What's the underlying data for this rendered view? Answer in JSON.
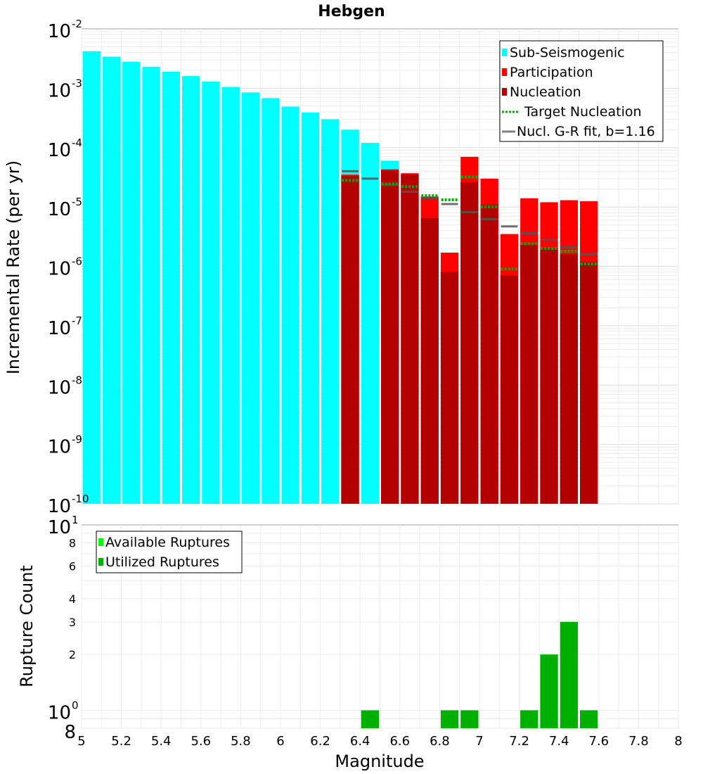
{
  "chart_data": [
    {
      "type": "bar",
      "title": "Hebgen",
      "xlabel": "",
      "ylabel": "Incremental Rate (per yr)",
      "yscale": "log",
      "ylim": [
        1e-10,
        0.01
      ],
      "xlim": [
        5.0,
        8.0
      ],
      "y_tick_labels": [
        {
          "base": "10",
          "exp": "-2",
          "value": 0.01
        },
        {
          "base": "10",
          "exp": "-3",
          "value": 0.001
        },
        {
          "base": "10",
          "exp": "-4",
          "value": 0.0001
        },
        {
          "base": "10",
          "exp": "-5",
          "value": 1e-05
        },
        {
          "base": "10",
          "exp": "-6",
          "value": 1e-06
        },
        {
          "base": "10",
          "exp": "-7",
          "value": 1e-07
        },
        {
          "base": "10",
          "exp": "-8",
          "value": 1e-08
        },
        {
          "base": "10",
          "exp": "-9",
          "value": 1e-09
        },
        {
          "base": "10",
          "exp": "-10",
          "value": 1e-10
        }
      ],
      "legend": {
        "placement": "top-right",
        "entries": [
          {
            "label": "Sub-Seismogenic",
            "color": "#00ffff",
            "style": "box"
          },
          {
            "label": "Participation",
            "color": "#ff0000",
            "style": "box"
          },
          {
            "label": "Nucleation",
            "color": "#b30000",
            "style": "box"
          },
          {
            "label": "Target Nucleation",
            "color": "#00b000",
            "style": "dotted"
          },
          {
            "label": "Nucl. G-R fit, b=1.16",
            "color": "#808080",
            "style": "line"
          }
        ]
      },
      "series": [
        {
          "name": "Sub-Seismogenic",
          "color": "#00ffff",
          "x": [
            5.05,
            5.15,
            5.25,
            5.35,
            5.45,
            5.55,
            5.65,
            5.75,
            5.85,
            5.95,
            6.05,
            6.15,
            6.25,
            6.35,
            6.45,
            6.55
          ],
          "values": [
            0.0042,
            0.0034,
            0.0028,
            0.0023,
            0.0019,
            0.0016,
            0.0013,
            0.00105,
            0.00085,
            0.00068,
            0.00049,
            0.00039,
            0.0003,
            0.0002,
            0.00012,
            6e-05
          ]
        },
        {
          "name": "Participation",
          "color": "#ff0000",
          "x": [
            6.35,
            6.55,
            6.65,
            6.75,
            6.85,
            6.95,
            7.05,
            7.15,
            7.25,
            7.35,
            7.45,
            7.55
          ],
          "values": [
            3.5e-05,
            4.3e-05,
            3.7e-05,
            1.5e-05,
            1.7e-06,
            7e-05,
            3e-05,
            3.5e-06,
            1.4e-05,
            1.2e-05,
            1.3e-05,
            1.25e-05
          ]
        },
        {
          "name": "Nucleation",
          "color": "#b30000",
          "x": [
            6.35,
            6.55,
            6.65,
            6.75,
            6.85,
            6.95,
            7.05,
            7.15,
            7.25,
            7.35,
            7.45,
            7.55
          ],
          "values": [
            3.3e-05,
            4.1e-05,
            3.5e-05,
            6.5e-06,
            8e-07,
            2.6e-05,
            1.1e-05,
            7e-07,
            2.3e-06,
            2e-06,
            1.6e-06,
            1.2e-06
          ]
        },
        {
          "name": "Target Nucleation",
          "color": "#00b000",
          "x": [
            6.35,
            6.55,
            6.65,
            6.75,
            6.85,
            6.95,
            7.05,
            7.15,
            7.25,
            7.35,
            7.45,
            7.55
          ],
          "values": [
            2.8e-05,
            2.45e-05,
            2.2e-05,
            1.55e-05,
            1.32e-05,
            3.2e-05,
            1e-05,
            9e-07,
            2.4e-06,
            2e-06,
            1.8e-06,
            1.1e-06
          ]
        },
        {
          "name": "Nucl. G-R fit, b=1.16",
          "color": "#808080",
          "x": [
            6.35,
            6.45,
            6.55,
            6.65,
            6.75,
            6.85,
            6.95,
            7.05,
            7.15,
            7.25,
            7.35,
            7.45,
            7.55
          ],
          "values": [
            4e-05,
            3e-05,
            2.35e-05,
            1.8e-05,
            1.42e-05,
            1.12e-05,
            8.2e-06,
            6.2e-06,
            4.7e-06,
            3.6e-06,
            2.8e-06,
            2.1e-06,
            1.6e-06
          ]
        }
      ]
    },
    {
      "type": "bar",
      "title": "",
      "xlabel": "Magnitude",
      "ylabel": "Rupture Count",
      "yscale": "log",
      "ylim": [
        0.8,
        10
      ],
      "xlim": [
        5.0,
        8.0
      ],
      "x_tick_labels": [
        "5",
        "5.2",
        "5.4",
        "5.6",
        "5.8",
        "6",
        "6.2",
        "6.4",
        "6.6",
        "6.8",
        "7",
        "7.2",
        "7.4",
        "7.6",
        "7.8",
        "8"
      ],
      "y_tick_labels": [
        {
          "base": "10",
          "exp": "1",
          "value": 10
        },
        {
          "base": "8",
          "exp": "",
          "value": 8
        },
        {
          "base": "6",
          "exp": "",
          "value": 6
        },
        {
          "base": "4",
          "exp": "",
          "value": 4
        },
        {
          "base": "3",
          "exp": "",
          "value": 3
        },
        {
          "base": "2",
          "exp": "",
          "value": 2
        },
        {
          "base": "10",
          "exp": "0",
          "value": 1
        },
        {
          "base": "8",
          "exp": "",
          "value": 0.8
        }
      ],
      "legend": {
        "placement": "top-left",
        "entries": [
          {
            "label": "Available Ruptures",
            "color": "#00ff00",
            "style": "box"
          },
          {
            "label": "Utilized Ruptures",
            "color": "#00b000",
            "style": "box"
          }
        ]
      },
      "series": [
        {
          "name": "Utilized Ruptures",
          "color": "#00b000",
          "x": [
            6.45,
            6.85,
            6.95,
            7.25,
            7.35,
            7.45,
            7.55
          ],
          "values": [
            1,
            1,
            1,
            1,
            2,
            3,
            1
          ]
        }
      ]
    }
  ]
}
